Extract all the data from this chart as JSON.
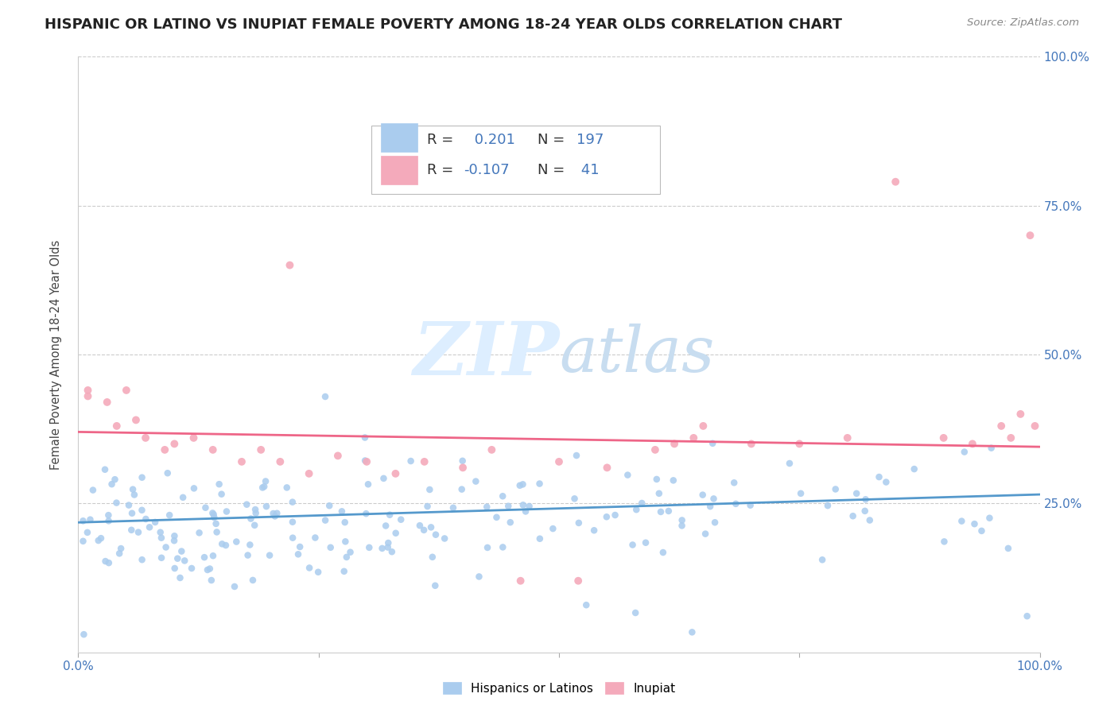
{
  "title": "HISPANIC OR LATINO VS INUPIAT FEMALE POVERTY AMONG 18-24 YEAR OLDS CORRELATION CHART",
  "source_text": "Source: ZipAtlas.com",
  "ylabel": "Female Poverty Among 18-24 Year Olds",
  "xlim": [
    0,
    1
  ],
  "ylim": [
    0,
    1
  ],
  "blue_color": "#aaccee",
  "pink_color": "#f4aabb",
  "blue_line_color": "#5599cc",
  "pink_line_color": "#ee6688",
  "title_fontsize": 13,
  "watermark_color": "#ddeeff",
  "background_color": "#ffffff",
  "grid_color": "#cccccc",
  "blue_trend_start": 0.218,
  "blue_trend_end": 0.265,
  "pink_trend_start": 0.37,
  "pink_trend_end": 0.345,
  "right_tick_color": "#4477bb",
  "legend_text_color": "#333333",
  "legend_num_color": "#4477bb"
}
